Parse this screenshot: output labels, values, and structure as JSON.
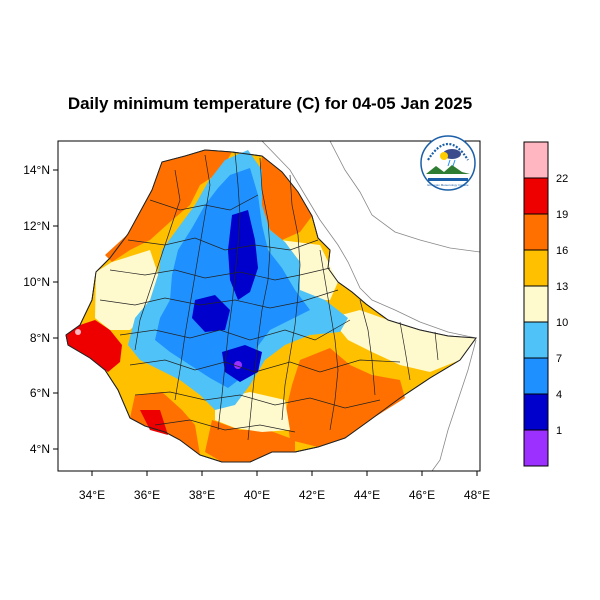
{
  "title": "Daily minimum temperature (C) for 04-05 Jan 2025",
  "axes": {
    "lat_labels": [
      "4°N",
      "6°N",
      "8°N",
      "10°N",
      "12°N",
      "14°N"
    ],
    "lon_labels": [
      "34°E",
      "36°E",
      "38°E",
      "40°E",
      "42°E",
      "44°E",
      "46°E",
      "48°E"
    ]
  },
  "colorbar": {
    "levels": [
      "1",
      "4",
      "7",
      "10",
      "13",
      "16",
      "19",
      "22"
    ],
    "colors": [
      "#9b30ff",
      "#0000cd",
      "#1e90ff",
      "#4fc3f7",
      "#fffacd",
      "#ffc000",
      "#ff7000",
      "#ee0000",
      "#ffb6c1"
    ]
  },
  "logo": {
    "name": "ethiopian-meteorology-institute-logo",
    "caption": "Ethiopian Meteorology Institute"
  }
}
